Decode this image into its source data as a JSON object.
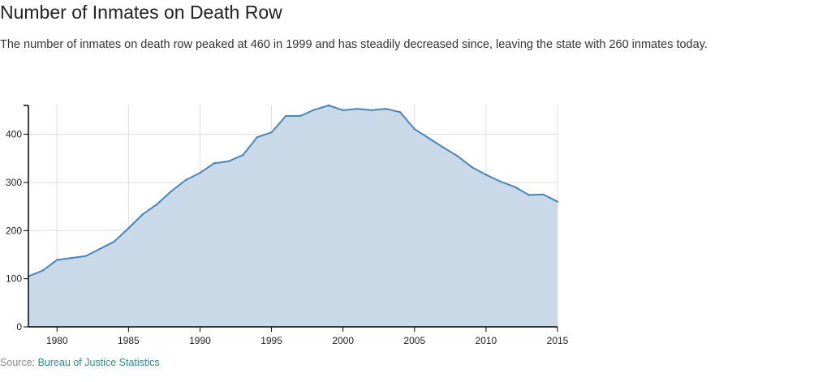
{
  "header": {
    "title": "Number of Inmates on Death Row",
    "subtitle": "The number of inmates on death row peaked at 460 in 1999 and has steadily decreased since, leaving the state with 260 inmates today."
  },
  "source": {
    "label": "Source:",
    "link_text": "Bureau of Justice Statistics"
  },
  "colors": {
    "area_fill": "#c9d9e8",
    "line": "#4a87b8",
    "grid": "#dddddd",
    "axis": "#000000"
  },
  "chart_data": {
    "type": "area",
    "title": "Number of Inmates on Death Row",
    "xlabel": "",
    "ylabel": "",
    "xlim": [
      1978,
      2015
    ],
    "ylim": [
      0,
      460
    ],
    "grid": true,
    "x_ticks": [
      1980,
      1985,
      1990,
      1995,
      2000,
      2005,
      2010,
      2015
    ],
    "y_ticks": [
      0,
      100,
      200,
      300,
      400
    ],
    "x": [
      1978,
      1979,
      1980,
      1981,
      1982,
      1983,
      1984,
      1985,
      1986,
      1987,
      1988,
      1989,
      1990,
      1991,
      1992,
      1993,
      1994,
      1995,
      1996,
      1997,
      1998,
      1999,
      2000,
      2001,
      2002,
      2003,
      2004,
      2005,
      2006,
      2007,
      2008,
      2009,
      2010,
      2011,
      2012,
      2013,
      2014,
      2015
    ],
    "series": [
      {
        "values": [
          105,
          117,
          139,
          143,
          147,
          162,
          177,
          205,
          234,
          255,
          282,
          305,
          320,
          340,
          344,
          357,
          394,
          404,
          438,
          438,
          451,
          460,
          450,
          453,
          450,
          453,
          446,
          411,
          392,
          373,
          355,
          332,
          316,
          302,
          291,
          274,
          275,
          260
        ]
      }
    ]
  }
}
